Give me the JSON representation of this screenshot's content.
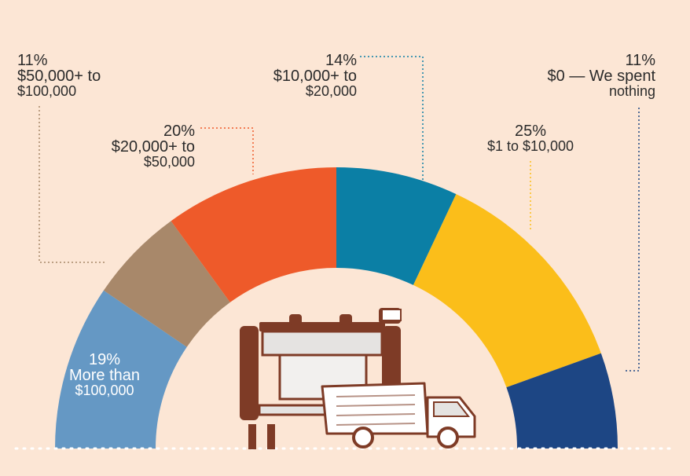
{
  "chart_data": {
    "type": "pie",
    "variant": "half-donut",
    "slices": [
      {
        "percent": "19%",
        "label": "More than",
        "label2": "$100,000",
        "value": 19,
        "color": "#6598c4"
      },
      {
        "percent": "11%",
        "label": "$50,000+ to",
        "label2": "$100,000",
        "value": 11,
        "color": "#a8886a"
      },
      {
        "percent": "20%",
        "label": "$20,000+ to",
        "label2": "$50,000",
        "value": 20,
        "color": "#ee5a2a"
      },
      {
        "percent": "14%",
        "label": "$10,000+ to",
        "label2": "$20,000",
        "value": 14,
        "color": "#0b7fa5"
      },
      {
        "percent": "25%",
        "label": "$1 to $10,000",
        "label2": "",
        "value": 25,
        "color": "#fbbe1a"
      },
      {
        "percent": "11%",
        "label": "$0 — We spent",
        "label2": "nothing",
        "value": 11,
        "color": "#1d4684"
      }
    ]
  },
  "illustration": {
    "icon": "printer-and-truck-icon",
    "color": "#7e3b26"
  },
  "colors": {
    "background": "#fce6d5",
    "baseline": "#ffffff"
  }
}
